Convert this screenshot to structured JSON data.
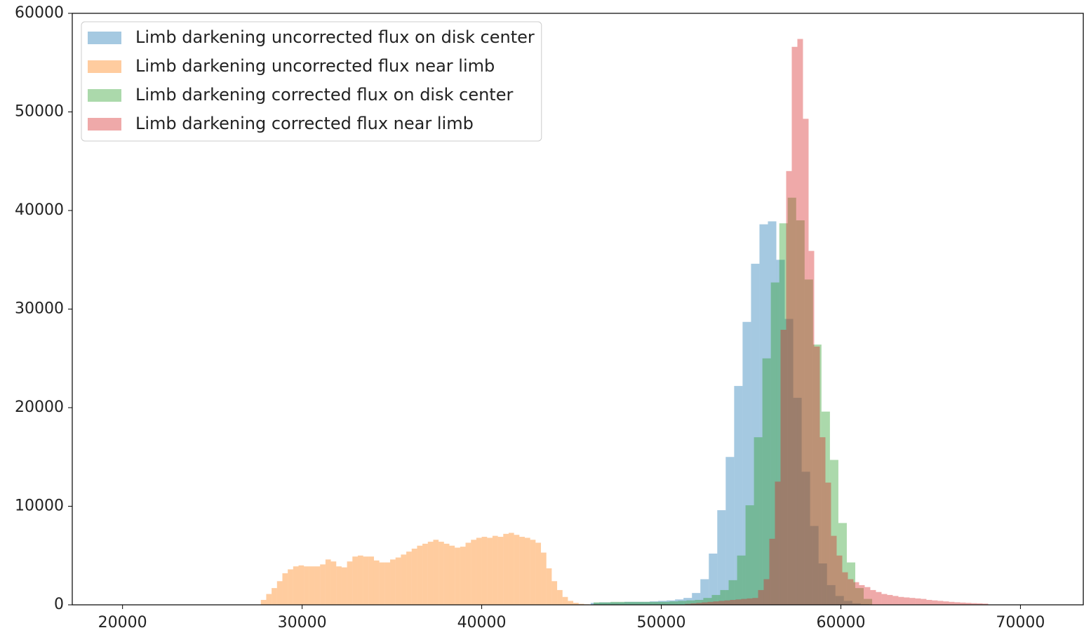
{
  "chart_data": {
    "type": "histogram",
    "xlim": [
      17200,
      73500
    ],
    "ylim": [
      0,
      60000
    ],
    "xticks": [
      20000,
      30000,
      40000,
      50000,
      60000,
      70000
    ],
    "yticks": [
      0,
      10000,
      20000,
      30000,
      40000,
      50000,
      60000
    ],
    "legend": "upper left",
    "opacity": 0.4,
    "series": [
      {
        "name": "Limb darkening uncorrected flux on disk center",
        "color": "#1f77b4",
        "bins": [
          46067,
          46537,
          47007,
          47477,
          47947,
          48417,
          48887,
          49357,
          49827,
          50297,
          50767,
          51237,
          51707,
          52177,
          52647,
          53117,
          53587,
          54057,
          54527,
          54997,
          55467,
          55937,
          56407,
          56877,
          57347,
          57817,
          58287,
          58757,
          59227,
          59697,
          60167,
          60637,
          61107,
          61577
        ],
        "values": [
          200,
          250,
          250,
          250,
          300,
          300,
          300,
          350,
          400,
          450,
          550,
          700,
          1200,
          2600,
          5200,
          9600,
          15000,
          22200,
          28700,
          34600,
          38600,
          38900,
          35000,
          29000,
          21000,
          13500,
          8000,
          4200,
          2000,
          900,
          400,
          150,
          60
        ]
      },
      {
        "name": "Limb darkening uncorrected flux near limb",
        "color": "#ff7f0e",
        "bins": [
          27700,
          28000,
          28300,
          28600,
          28900,
          29200,
          29500,
          29800,
          30100,
          30400,
          30700,
          31000,
          31300,
          31600,
          31900,
          32200,
          32500,
          32800,
          33100,
          33400,
          33700,
          34000,
          34300,
          34600,
          34900,
          35200,
          35500,
          35800,
          36100,
          36400,
          36700,
          37000,
          37300,
          37600,
          37900,
          38200,
          38500,
          38800,
          39100,
          39400,
          39700,
          40000,
          40300,
          40600,
          40900,
          41200,
          41500,
          41800,
          42100,
          42400,
          42700,
          43000,
          43300,
          43600,
          43900,
          44200,
          44500,
          44800,
          45100,
          45400,
          45700,
          46000,
          46300
        ],
        "values": [
          500,
          1100,
          1700,
          2400,
          3200,
          3600,
          3900,
          4000,
          3900,
          3900,
          3900,
          4100,
          4600,
          4400,
          3900,
          3800,
          4400,
          4900,
          5000,
          4900,
          4900,
          4500,
          4300,
          4300,
          4600,
          4800,
          5100,
          5400,
          5700,
          6000,
          6200,
          6400,
          6600,
          6400,
          6200,
          6000,
          5800,
          5900,
          6300,
          6600,
          6800,
          6900,
          6800,
          7000,
          6900,
          7200,
          7300,
          7100,
          6900,
          6800,
          6600,
          6300,
          5300,
          3700,
          2400,
          1500,
          800,
          400,
          200,
          100,
          50,
          20
        ]
      },
      {
        "name": "Limb darkening corrected flux on disk center",
        "color": "#2ca02c",
        "bins": [
          46231,
          46701,
          47171,
          47641,
          48111,
          48581,
          49051,
          49521,
          49991,
          50461,
          50931,
          51401,
          51871,
          52341,
          52811,
          53281,
          53751,
          54221,
          54691,
          55161,
          55631,
          56101,
          56571,
          57041,
          57511,
          57981,
          58451,
          58921,
          59391,
          59861,
          60331,
          60801,
          61271,
          61741
        ],
        "values": [
          250,
          250,
          300,
          300,
          300,
          300,
          300,
          300,
          300,
          350,
          400,
          450,
          500,
          700,
          1000,
          1500,
          2500,
          5000,
          10100,
          17000,
          25000,
          32700,
          38700,
          41300,
          39000,
          33000,
          26400,
          19600,
          14700,
          8300,
          4300,
          1700,
          600
        ]
      },
      {
        "name": "Limb darkening corrected flux near limb",
        "color": "#d62728",
        "bins": [
          51328,
          51640.5,
          51953,
          52265.5,
          52578,
          52890.5,
          53203,
          53515.5,
          53828,
          54140.5,
          54453,
          54765.5,
          55078,
          55390.5,
          55703,
          56015.5,
          56328,
          56640.5,
          56953,
          57265.5,
          57578,
          57890.5,
          58203,
          58515.5,
          58828,
          59140.5,
          59453,
          59765.5,
          60078,
          60390.5,
          60703,
          61015.5,
          61328,
          61640.5,
          61953,
          62265.5,
          62578,
          62890.5,
          63203,
          63515.5,
          63828,
          64140.5,
          64453,
          64765.5,
          65078,
          65390.5,
          65703,
          66015.5,
          66328,
          66640.5,
          66953,
          67265.5,
          67578,
          67890.5,
          68203
        ],
        "values": [
          100,
          150,
          200,
          250,
          300,
          350,
          400,
          450,
          500,
          550,
          600,
          650,
          700,
          1500,
          2600,
          6700,
          12500,
          27900,
          44000,
          56600,
          57400,
          49300,
          35900,
          26200,
          17000,
          12400,
          7000,
          5000,
          3300,
          2600,
          2300,
          2000,
          1800,
          1500,
          1300,
          1100,
          1000,
          900,
          800,
          750,
          700,
          650,
          600,
          500,
          450,
          400,
          350,
          300,
          260,
          230,
          200,
          170,
          150,
          120
        ]
      }
    ]
  }
}
